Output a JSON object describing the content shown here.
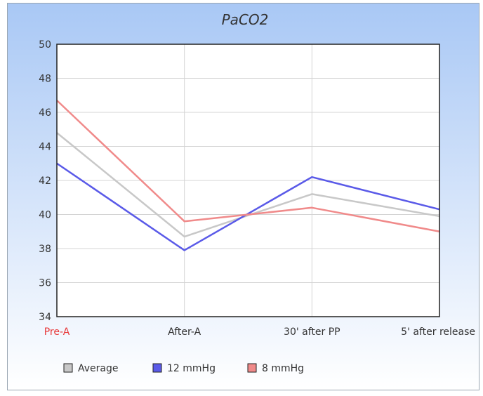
{
  "chart_data": {
    "type": "line",
    "title": "PaCO2",
    "categories": [
      "Pre-A",
      "After-A",
      "30' after PP",
      "5' after release"
    ],
    "highlighted_category": "Pre-A",
    "ylim": [
      34,
      50
    ],
    "yticks": [
      34,
      36,
      38,
      40,
      42,
      44,
      46,
      48,
      50
    ],
    "grid": true,
    "legend_position": "bottom-left",
    "series": [
      {
        "name": "Average",
        "color": "#c8c8c8",
        "values": [
          44.8,
          38.7,
          41.2,
          39.9
        ]
      },
      {
        "name": "12 mmHg",
        "color": "#5a5ae8",
        "values": [
          43.0,
          37.9,
          42.2,
          40.3
        ]
      },
      {
        "name": "8 mmHg",
        "color": "#f08a8a",
        "values": [
          46.7,
          39.6,
          40.4,
          39.0
        ]
      }
    ],
    "colors": {
      "background_top": "#a9c8f5",
      "background_bottom": "#ffffff",
      "highlight_label": "#e83a3a"
    }
  }
}
